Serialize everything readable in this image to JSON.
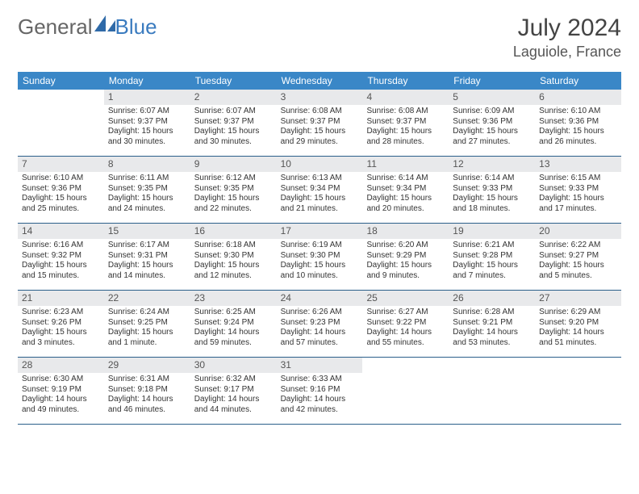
{
  "brand": {
    "part1": "General",
    "part2": "Blue"
  },
  "title": "July 2024",
  "location": "Laguiole, France",
  "colors": {
    "header_bg": "#3a87c7",
    "daynum_bg": "#e8e9eb",
    "week_border": "#2b5f8a",
    "text": "#333333",
    "title_text": "#444444"
  },
  "dow": [
    "Sunday",
    "Monday",
    "Tuesday",
    "Wednesday",
    "Thursday",
    "Friday",
    "Saturday"
  ],
  "weeks": [
    [
      {
        "n": "",
        "sr": "",
        "ss": "",
        "dl": ""
      },
      {
        "n": "1",
        "sr": "Sunrise: 6:07 AM",
        "ss": "Sunset: 9:37 PM",
        "dl": "Daylight: 15 hours and 30 minutes."
      },
      {
        "n": "2",
        "sr": "Sunrise: 6:07 AM",
        "ss": "Sunset: 9:37 PM",
        "dl": "Daylight: 15 hours and 30 minutes."
      },
      {
        "n": "3",
        "sr": "Sunrise: 6:08 AM",
        "ss": "Sunset: 9:37 PM",
        "dl": "Daylight: 15 hours and 29 minutes."
      },
      {
        "n": "4",
        "sr": "Sunrise: 6:08 AM",
        "ss": "Sunset: 9:37 PM",
        "dl": "Daylight: 15 hours and 28 minutes."
      },
      {
        "n": "5",
        "sr": "Sunrise: 6:09 AM",
        "ss": "Sunset: 9:36 PM",
        "dl": "Daylight: 15 hours and 27 minutes."
      },
      {
        "n": "6",
        "sr": "Sunrise: 6:10 AM",
        "ss": "Sunset: 9:36 PM",
        "dl": "Daylight: 15 hours and 26 minutes."
      }
    ],
    [
      {
        "n": "7",
        "sr": "Sunrise: 6:10 AM",
        "ss": "Sunset: 9:36 PM",
        "dl": "Daylight: 15 hours and 25 minutes."
      },
      {
        "n": "8",
        "sr": "Sunrise: 6:11 AM",
        "ss": "Sunset: 9:35 PM",
        "dl": "Daylight: 15 hours and 24 minutes."
      },
      {
        "n": "9",
        "sr": "Sunrise: 6:12 AM",
        "ss": "Sunset: 9:35 PM",
        "dl": "Daylight: 15 hours and 22 minutes."
      },
      {
        "n": "10",
        "sr": "Sunrise: 6:13 AM",
        "ss": "Sunset: 9:34 PM",
        "dl": "Daylight: 15 hours and 21 minutes."
      },
      {
        "n": "11",
        "sr": "Sunrise: 6:14 AM",
        "ss": "Sunset: 9:34 PM",
        "dl": "Daylight: 15 hours and 20 minutes."
      },
      {
        "n": "12",
        "sr": "Sunrise: 6:14 AM",
        "ss": "Sunset: 9:33 PM",
        "dl": "Daylight: 15 hours and 18 minutes."
      },
      {
        "n": "13",
        "sr": "Sunrise: 6:15 AM",
        "ss": "Sunset: 9:33 PM",
        "dl": "Daylight: 15 hours and 17 minutes."
      }
    ],
    [
      {
        "n": "14",
        "sr": "Sunrise: 6:16 AM",
        "ss": "Sunset: 9:32 PM",
        "dl": "Daylight: 15 hours and 15 minutes."
      },
      {
        "n": "15",
        "sr": "Sunrise: 6:17 AM",
        "ss": "Sunset: 9:31 PM",
        "dl": "Daylight: 15 hours and 14 minutes."
      },
      {
        "n": "16",
        "sr": "Sunrise: 6:18 AM",
        "ss": "Sunset: 9:30 PM",
        "dl": "Daylight: 15 hours and 12 minutes."
      },
      {
        "n": "17",
        "sr": "Sunrise: 6:19 AM",
        "ss": "Sunset: 9:30 PM",
        "dl": "Daylight: 15 hours and 10 minutes."
      },
      {
        "n": "18",
        "sr": "Sunrise: 6:20 AM",
        "ss": "Sunset: 9:29 PM",
        "dl": "Daylight: 15 hours and 9 minutes."
      },
      {
        "n": "19",
        "sr": "Sunrise: 6:21 AM",
        "ss": "Sunset: 9:28 PM",
        "dl": "Daylight: 15 hours and 7 minutes."
      },
      {
        "n": "20",
        "sr": "Sunrise: 6:22 AM",
        "ss": "Sunset: 9:27 PM",
        "dl": "Daylight: 15 hours and 5 minutes."
      }
    ],
    [
      {
        "n": "21",
        "sr": "Sunrise: 6:23 AM",
        "ss": "Sunset: 9:26 PM",
        "dl": "Daylight: 15 hours and 3 minutes."
      },
      {
        "n": "22",
        "sr": "Sunrise: 6:24 AM",
        "ss": "Sunset: 9:25 PM",
        "dl": "Daylight: 15 hours and 1 minute."
      },
      {
        "n": "23",
        "sr": "Sunrise: 6:25 AM",
        "ss": "Sunset: 9:24 PM",
        "dl": "Daylight: 14 hours and 59 minutes."
      },
      {
        "n": "24",
        "sr": "Sunrise: 6:26 AM",
        "ss": "Sunset: 9:23 PM",
        "dl": "Daylight: 14 hours and 57 minutes."
      },
      {
        "n": "25",
        "sr": "Sunrise: 6:27 AM",
        "ss": "Sunset: 9:22 PM",
        "dl": "Daylight: 14 hours and 55 minutes."
      },
      {
        "n": "26",
        "sr": "Sunrise: 6:28 AM",
        "ss": "Sunset: 9:21 PM",
        "dl": "Daylight: 14 hours and 53 minutes."
      },
      {
        "n": "27",
        "sr": "Sunrise: 6:29 AM",
        "ss": "Sunset: 9:20 PM",
        "dl": "Daylight: 14 hours and 51 minutes."
      }
    ],
    [
      {
        "n": "28",
        "sr": "Sunrise: 6:30 AM",
        "ss": "Sunset: 9:19 PM",
        "dl": "Daylight: 14 hours and 49 minutes."
      },
      {
        "n": "29",
        "sr": "Sunrise: 6:31 AM",
        "ss": "Sunset: 9:18 PM",
        "dl": "Daylight: 14 hours and 46 minutes."
      },
      {
        "n": "30",
        "sr": "Sunrise: 6:32 AM",
        "ss": "Sunset: 9:17 PM",
        "dl": "Daylight: 14 hours and 44 minutes."
      },
      {
        "n": "31",
        "sr": "Sunrise: 6:33 AM",
        "ss": "Sunset: 9:16 PM",
        "dl": "Daylight: 14 hours and 42 minutes."
      },
      {
        "n": "",
        "sr": "",
        "ss": "",
        "dl": ""
      },
      {
        "n": "",
        "sr": "",
        "ss": "",
        "dl": ""
      },
      {
        "n": "",
        "sr": "",
        "ss": "",
        "dl": ""
      }
    ]
  ]
}
